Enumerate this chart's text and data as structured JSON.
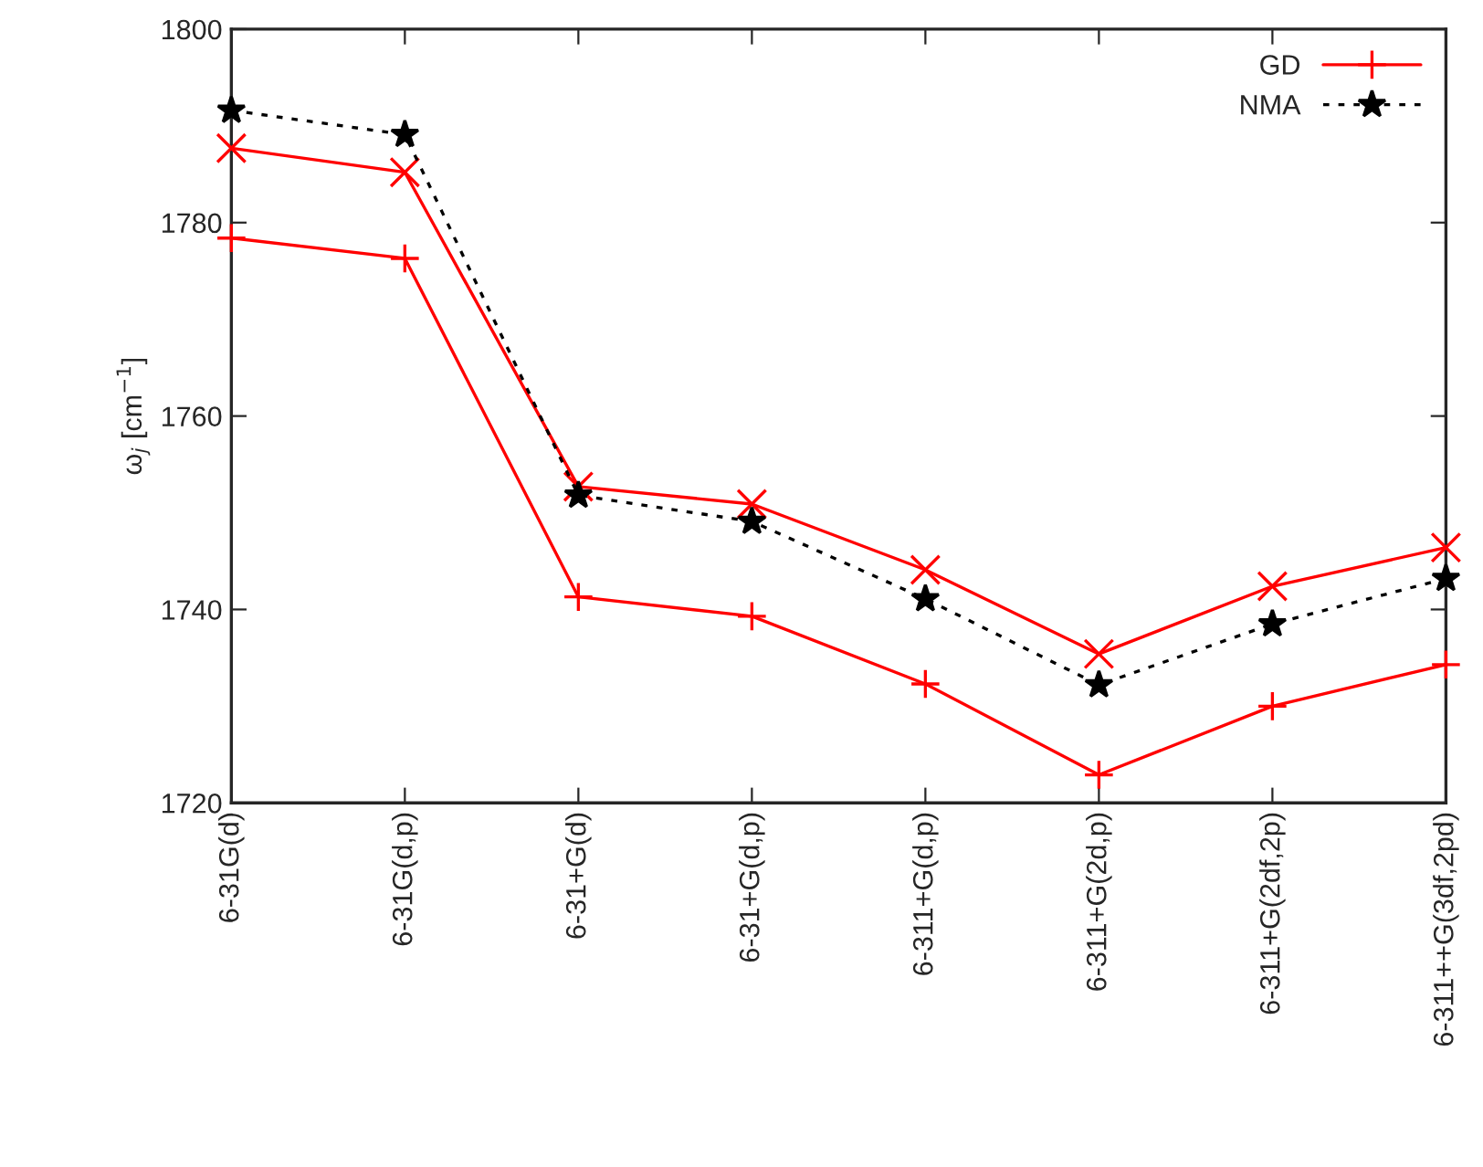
{
  "chart_data": {
    "type": "line",
    "ylabel": "ω$_{j}$ [cm$^{−1}$]",
    "categories": [
      "6-31G(d)",
      "6-31G(d,p)",
      "6-31+G(d)",
      "6-31+G(d,p)",
      "6-311+G(d,p)",
      "6-311+G(2d,p)",
      "6-311+G(2df,2p)",
      "6-311++G(3df,2pd)"
    ],
    "series": [
      {
        "name": "GD",
        "color": "#ff0000",
        "marker": "plus",
        "line_style": "solid",
        "values": [
          1778.4,
          1776.3,
          1741.3,
          1739.3,
          1732.3,
          1722.9,
          1730.0,
          1734.3
        ]
      },
      {
        "color": "#ff0000",
        "marker": "cross",
        "line_style": "solid",
        "values": [
          1787.7,
          1785.2,
          1752.7,
          1750.9,
          1744.1,
          1735.4,
          1742.4,
          1746.4
        ]
      },
      {
        "name": "NMA",
        "color": "#000000",
        "marker": "star",
        "line_style": "dotted",
        "values": [
          1791.6,
          1789.1,
          1751.8,
          1749.1,
          1741.1,
          1732.2,
          1738.5,
          1743.2
        ]
      }
    ],
    "ylim": [
      1720,
      1800
    ],
    "yticks": [
      1720,
      1740,
      1760,
      1780,
      1800
    ],
    "grid": false,
    "legend": "top right"
  }
}
